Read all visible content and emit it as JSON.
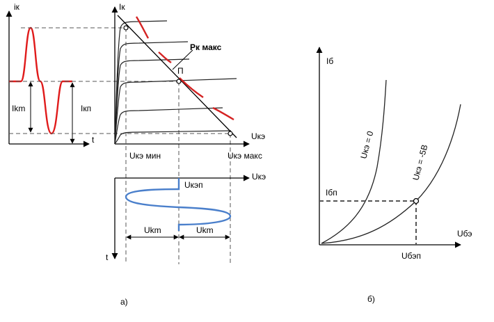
{
  "panel_a": {
    "caption": "а)",
    "signal_graph": {
      "y_axis_label": "iк",
      "x_axis_label": "t",
      "amplitude_label": "Ikm",
      "quiescent_label": "Iкп"
    },
    "output_characteristics": {
      "y_axis_label": "Iк",
      "x_axis_label": "Uкэ",
      "power_limit_label": "Pк макс",
      "operating_point_label": "П",
      "u_min_label": "Uкэ мин",
      "u_max_label": "Uкэ макс"
    },
    "voltage_graph": {
      "x_axis_label": "Uкэ",
      "quiescent_label": "Uкэп",
      "time_axis_label": "t",
      "amplitude_label_left": "Ukm",
      "amplitude_label_right": "Ukm"
    }
  },
  "panel_b": {
    "caption": "б)",
    "y_axis_label": "Iб",
    "x_axis_label": "Uбэ",
    "i_quiescent_label": "Iбп",
    "u_quiescent_label": "Uбэп",
    "curve1_label": "Uкэ = 0",
    "curve2_label": "Uкэ = -5В"
  },
  "colors": {
    "signal": "#e01b1b",
    "power_limit": "#d42222",
    "voltage_wave": "#4a7fcb",
    "axes": "#000000",
    "dashes": "#555555"
  }
}
